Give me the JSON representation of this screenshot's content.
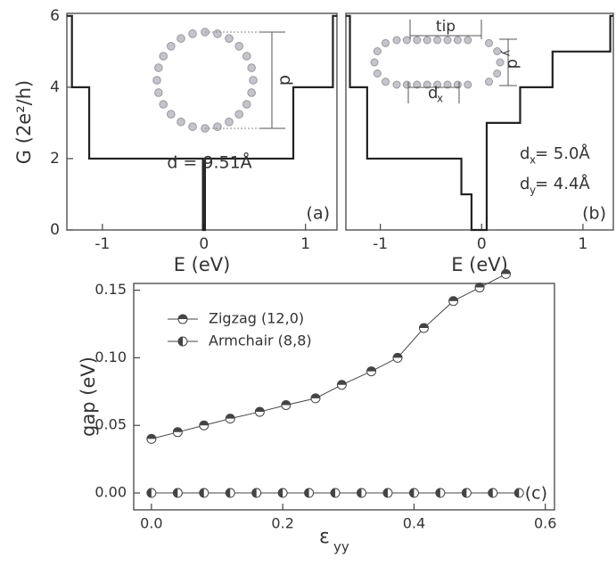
{
  "chart_data": [
    {
      "type": "line",
      "x_label": "E (eV)",
      "y_label": "G (2e²/h)",
      "x": [
        -1.35,
        -1.3,
        -1.3,
        -1.13,
        -1.13,
        -0.01,
        -0.01,
        0.01,
        0.01,
        0.88,
        0.88,
        1.27,
        1.27,
        1.31
      ],
      "values": [
        6,
        6,
        4,
        4,
        2,
        2,
        0,
        0,
        2,
        2,
        4,
        4,
        6,
        6
      ],
      "color": "#222",
      "xlim": [
        -1.35,
        1.31
      ],
      "ylim": [
        0,
        6.07
      ],
      "xticks": [
        -1,
        0,
        1
      ],
      "yticks": [
        0,
        2,
        4,
        6
      ],
      "annotations": [
        "d = 9.51Å",
        "d"
      ],
      "panel_label": "(a)"
    },
    {
      "type": "line",
      "x_label": "E (eV)",
      "x": [
        -1.34,
        -1.3,
        -1.3,
        -1.13,
        -1.13,
        -0.2,
        -0.2,
        -0.1,
        -0.1,
        0.05,
        0.05,
        0.38,
        0.38,
        0.7,
        0.7,
        1.27,
        1.27,
        1.3
      ],
      "values": [
        6,
        6,
        4,
        4,
        2,
        2,
        1,
        1,
        0,
        0,
        3,
        3,
        4,
        4,
        5,
        5,
        6,
        6
      ],
      "color": "#222",
      "xlim": [
        -1.34,
        1.3
      ],
      "ylim": [
        0,
        6.07
      ],
      "xticks": [
        -1,
        0,
        1
      ],
      "annotations": [
        "tip",
        "d",
        "x",
        "d",
        "y",
        "d",
        "x",
        " = 5.0Å",
        "d",
        "y",
        " = 4.4Å"
      ],
      "panel_label": "(b)"
    },
    {
      "type": "line",
      "x_label": "ε",
      "x_label_sub": "yy",
      "y_label": "gap (eV)",
      "series": [
        {
          "name": "Zigzag  (12,0)",
          "color": "#444",
          "x": [
            0,
            0.04,
            0.08,
            0.12,
            0.165,
            0.205,
            0.25,
            0.29,
            0.335,
            0.375,
            0.415,
            0.46,
            0.5,
            0.54
          ],
          "values": [
            0.04,
            0.045,
            0.05,
            0.055,
            0.06,
            0.065,
            0.07,
            0.08,
            0.09,
            0.1,
            0.122,
            0.142,
            0.152,
            0.162
          ]
        },
        {
          "name": "Armchair (8,8)",
          "color": "#444",
          "x": [
            0,
            0.04,
            0.08,
            0.12,
            0.16,
            0.2,
            0.24,
            0.28,
            0.32,
            0.36,
            0.4,
            0.44,
            0.48,
            0.52,
            0.56
          ],
          "values": [
            0,
            0,
            0,
            0,
            0,
            0,
            0,
            0,
            0,
            0,
            0,
            0,
            0,
            0,
            0
          ]
        }
      ],
      "xlim": [
        -0.027,
        0.614
      ],
      "ylim": [
        -0.0125,
        0.155
      ],
      "xticks": [
        {
          "value": 0,
          "label": "0.0"
        },
        0.2,
        0.4,
        0.6
      ],
      "yticks": [
        {
          "value": 0,
          "label": "0.00"
        },
        0.05,
        {
          "value": 0.1,
          "label": "0.10"
        },
        0.15
      ],
      "legend": "upper left",
      "panel_label": "(c)"
    }
  ]
}
